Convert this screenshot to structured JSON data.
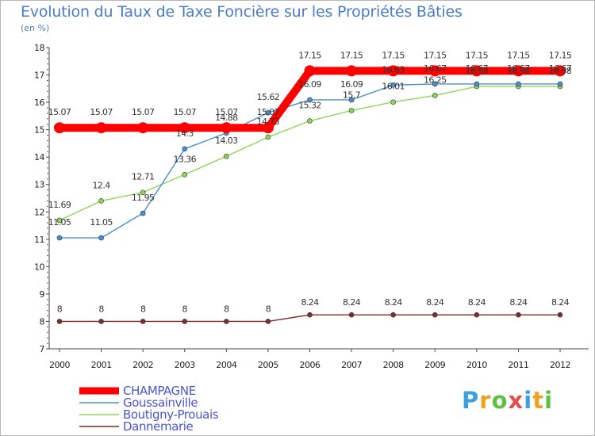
{
  "chart_data": {
    "type": "line",
    "title": "Evolution du Taux de Taxe Foncière sur les Propriétés Bâties",
    "subtitle": "(en %)",
    "xlabel": "",
    "ylabel": "",
    "ylim": [
      7,
      18
    ],
    "yticks": [
      "7",
      "8",
      "9",
      "10",
      "11",
      "12",
      "13",
      "14",
      "15",
      "16",
      "17",
      "18"
    ],
    "categories": [
      "2000",
      "2001",
      "2002",
      "2003",
      "2004",
      "2005",
      "2006",
      "2007",
      "2008",
      "2009",
      "2010",
      "2011",
      "2012"
    ],
    "grid": false,
    "legend_position": "bottom-left",
    "series": [
      {
        "name": "CHAMPAGNE",
        "color": "#ff0000",
        "values": [
          15.07,
          15.07,
          15.07,
          15.07,
          15.07,
          15.07,
          17.15,
          17.15,
          17.15,
          17.15,
          17.15,
          17.15,
          17.15
        ],
        "labels": [
          "15.07",
          "15.07",
          "15.07",
          "15.07",
          "15.07",
          "15.07",
          "17.15",
          "17.15",
          "17.15",
          "17.15",
          "17.15",
          "17.15",
          "17.15"
        ]
      },
      {
        "name": "Goussainville",
        "color": "#4a8fd0",
        "values": [
          11.05,
          11.05,
          11.95,
          14.3,
          14.88,
          15.62,
          16.09,
          16.09,
          16.63,
          16.67,
          16.67,
          16.67,
          16.67
        ],
        "labels": [
          "11.05",
          "11.05",
          "11.95",
          "14.3",
          "14.88",
          "15.62",
          "16.09",
          "16.09",
          "16.63",
          "16.67",
          "16.67",
          "16.67",
          "16.67"
        ]
      },
      {
        "name": "Boutigny-Prouais",
        "color": "#8ed65a",
        "values": [
          11.69,
          12.4,
          12.71,
          13.36,
          14.03,
          14.73,
          15.32,
          15.7,
          16.01,
          16.25,
          16.58,
          16.58,
          16.58
        ],
        "labels": [
          "11.69",
          "12.4",
          "12.71",
          "13.36",
          "14.03",
          "14.73",
          "15.32",
          "15.7",
          "16.01",
          "16.25",
          "16.58",
          "16.58",
          "16.58"
        ]
      },
      {
        "name": "Dannemarie",
        "color": "#7a2e2e",
        "values": [
          8,
          8,
          8,
          8,
          8,
          8,
          8.24,
          8.24,
          8.24,
          8.24,
          8.24,
          8.24,
          8.24
        ],
        "labels": [
          "8",
          "8",
          "8",
          "8",
          "8",
          "8",
          "8.24",
          "8.24",
          "8.24",
          "8.24",
          "8.24",
          "8.24",
          "8.24"
        ]
      }
    ]
  },
  "logo": {
    "letters": [
      "P",
      "r",
      "o",
      "x",
      "i",
      "t",
      "i"
    ],
    "colors": [
      "#3aa0e0",
      "#f0a020",
      "#60c040",
      "#e05050",
      "#3aa0e0",
      "#f0a020",
      "#60c040"
    ]
  }
}
